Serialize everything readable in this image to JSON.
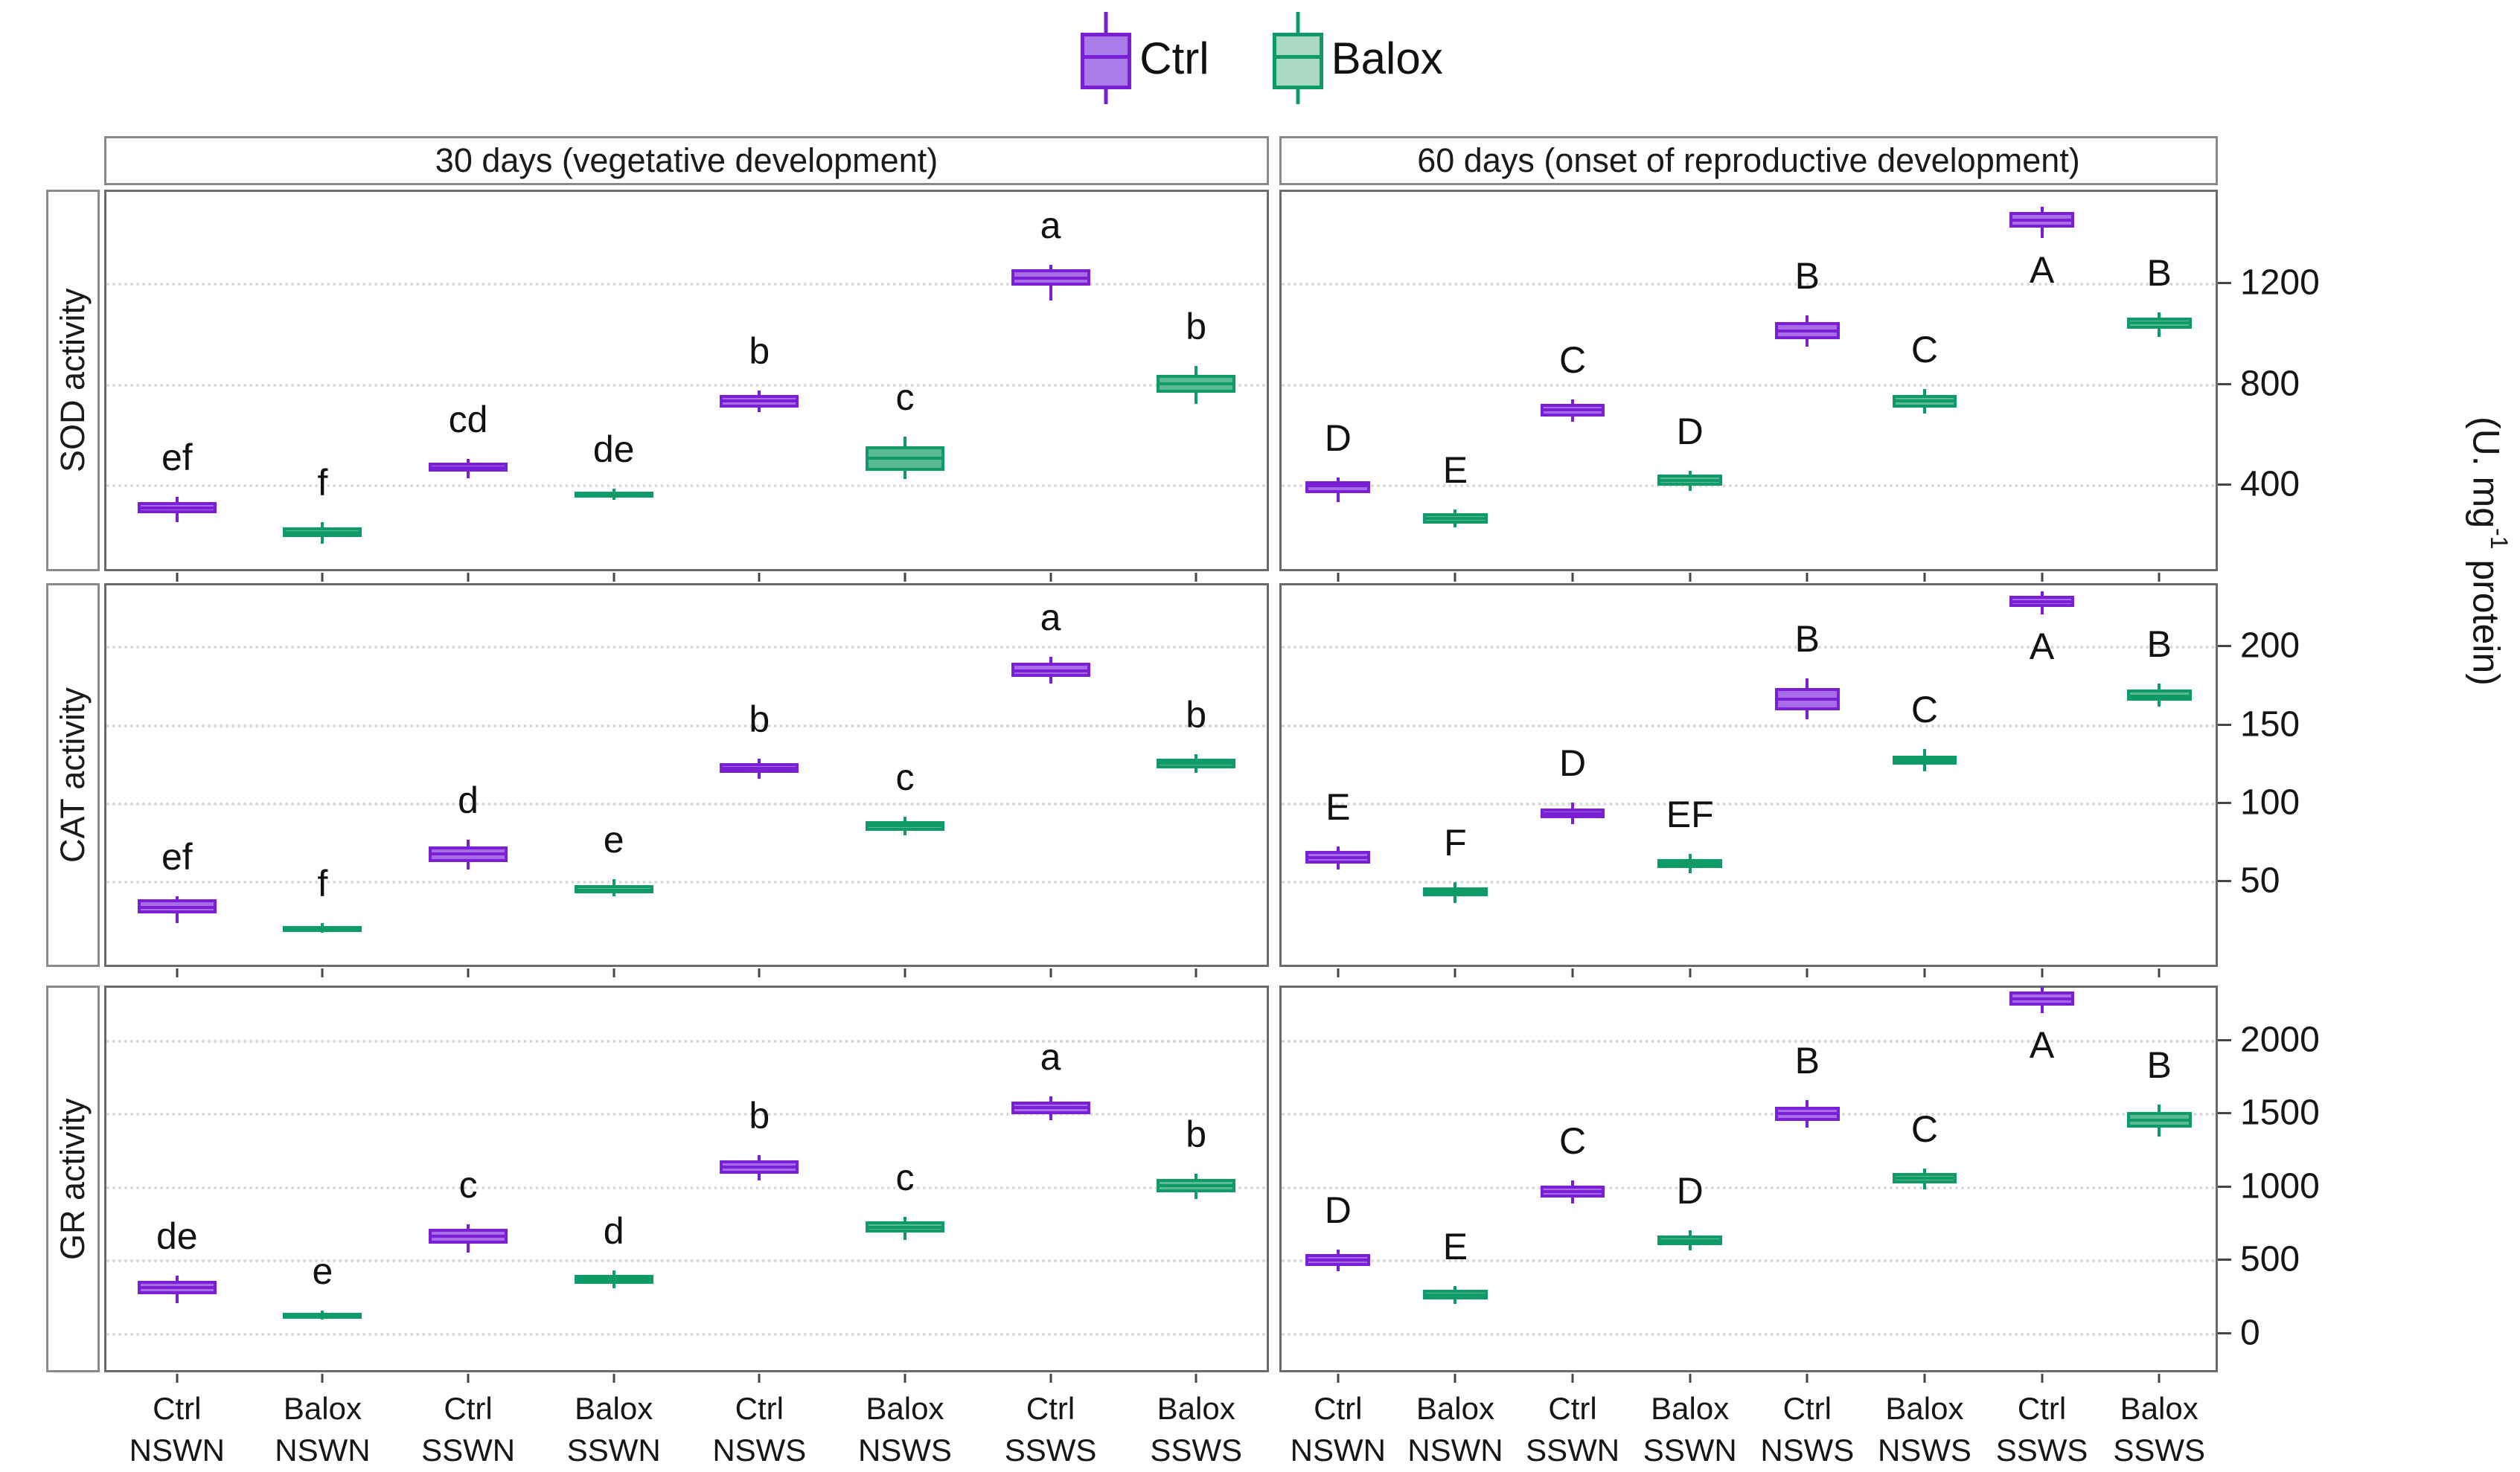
{
  "legend": {
    "items": [
      {
        "label": "Ctrl"
      },
      {
        "label": "Balox"
      }
    ]
  },
  "facets": {
    "columns": [
      {
        "title": "30 days (vegetative development)"
      },
      {
        "title": "60 days (onset of reproductive development)"
      }
    ],
    "rows": [
      {
        "title": "SOD activity"
      },
      {
        "title": "CAT activity"
      },
      {
        "title": "GR activity"
      }
    ]
  },
  "y_axis_label": {
    "pre": "(U. mg",
    "sup": "-1",
    "post": " protein)"
  },
  "chart_data": {
    "type": "boxplot",
    "legend_position": "top-center",
    "grid": "dotted-horizontal",
    "series": [
      {
        "name": "Ctrl",
        "fill": "#a76de8",
        "stroke": "#7b1fd6",
        "legend_fill": "#aa7ce9"
      },
      {
        "name": "Balox",
        "fill": "#5cb995",
        "stroke": "#0e9b67",
        "legend_fill": "#a9d8c4"
      }
    ],
    "categories": [
      {
        "l1": "Ctrl",
        "l2": "NSWN"
      },
      {
        "l1": "Balox",
        "l2": "NSWN"
      },
      {
        "l1": "Ctrl",
        "l2": "SSWN"
      },
      {
        "l1": "Balox",
        "l2": "SSWN"
      },
      {
        "l1": "Ctrl",
        "l2": "NSWS"
      },
      {
        "l1": "Balox",
        "l2": "NSWS"
      },
      {
        "l1": "Ctrl",
        "l2": "SSWS"
      },
      {
        "l1": "Balox",
        "l2": "SSWS"
      }
    ],
    "rows": [
      {
        "title": "SOD activity",
        "ylim": [
          55,
          1570
        ],
        "yticks": [
          400,
          800,
          1200
        ],
        "panels": [
          {
            "facet": "30 days (vegetative development)",
            "boxes": [
              {
                "t": "Ctrl",
                "s": "NSWN",
                "letter": "ef",
                "med": 305,
                "q1": 285,
                "q3": 330,
                "lo": 250,
                "hi": 350
              },
              {
                "t": "Balox",
                "s": "NSWN",
                "letter": "f",
                "med": 210,
                "q1": 190,
                "q3": 230,
                "lo": 165,
                "hi": 250
              },
              {
                "t": "Ctrl",
                "s": "SSWN",
                "letter": "cd",
                "med": 465,
                "q1": 450,
                "q3": 485,
                "lo": 425,
                "hi": 500
              },
              {
                "t": "Balox",
                "s": "SSWN",
                "letter": "de",
                "med": 360,
                "q1": 350,
                "q3": 372,
                "lo": 338,
                "hi": 382
              },
              {
                "t": "Ctrl",
                "s": "NSWS",
                "letter": "b",
                "med": 730,
                "q1": 705,
                "q3": 755,
                "lo": 688,
                "hi": 772
              },
              {
                "t": "Balox",
                "s": "NSWS",
                "letter": "c",
                "med": 505,
                "q1": 455,
                "q3": 550,
                "lo": 420,
                "hi": 590
              },
              {
                "t": "Ctrl",
                "s": "SSWS",
                "letter": "a",
                "med": 1220,
                "q1": 1190,
                "q3": 1255,
                "lo": 1130,
                "hi": 1272
              },
              {
                "t": "Balox",
                "s": "SSWS",
                "letter": "b",
                "med": 800,
                "q1": 765,
                "q3": 835,
                "lo": 720,
                "hi": 870
              }
            ]
          },
          {
            "facet": "60 days (onset of reproductive development)",
            "boxes": [
              {
                "t": "Ctrl",
                "s": "NSWN",
                "letter": "D",
                "med": 395,
                "q1": 365,
                "q3": 412,
                "lo": 330,
                "hi": 426
              },
              {
                "t": "Balox",
                "s": "NSWN",
                "letter": "E",
                "med": 265,
                "q1": 245,
                "q3": 285,
                "lo": 228,
                "hi": 300
              },
              {
                "t": "Ctrl",
                "s": "SSWN",
                "letter": "C",
                "med": 695,
                "q1": 670,
                "q3": 720,
                "lo": 648,
                "hi": 736
              },
              {
                "t": "Balox",
                "s": "SSWN",
                "letter": "D",
                "med": 415,
                "q1": 395,
                "q3": 440,
                "lo": 375,
                "hi": 455
              },
              {
                "t": "Ctrl",
                "s": "NSWS",
                "letter": "B",
                "med": 1010,
                "q1": 975,
                "q3": 1045,
                "lo": 948,
                "hi": 1072
              },
              {
                "t": "Balox",
                "s": "NSWS",
                "letter": "C",
                "med": 730,
                "q1": 705,
                "q3": 755,
                "lo": 680,
                "hi": 780
              },
              {
                "t": "Ctrl",
                "s": "SSWS",
                "letter": "A",
                "med": 1450,
                "q1": 1420,
                "q3": 1480,
                "lo": 1378,
                "hi": 1502,
                "letter_below": true
              },
              {
                "t": "Balox",
                "s": "SSWS",
                "letter": "B",
                "med": 1040,
                "q1": 1018,
                "q3": 1062,
                "lo": 985,
                "hi": 1082
              }
            ]
          }
        ]
      },
      {
        "title": "CAT activity",
        "ylim": [
          -5,
          240
        ],
        "yticks": [
          50,
          100,
          150,
          200
        ],
        "panels": [
          {
            "facet": "30 days (vegetative development)",
            "boxes": [
              {
                "t": "Ctrl",
                "s": "NSWN",
                "letter": "ef",
                "med": 33,
                "q1": 29,
                "q3": 38,
                "lo": 23,
                "hi": 40
              },
              {
                "t": "Balox",
                "s": "NSWN",
                "letter": "f",
                "med": 20,
                "q1": 19,
                "q3": 21,
                "lo": 17,
                "hi": 23
              },
              {
                "t": "Ctrl",
                "s": "SSWN",
                "letter": "d",
                "med": 67,
                "q1": 62,
                "q3": 72,
                "lo": 57,
                "hi": 76
              },
              {
                "t": "Balox",
                "s": "SSWN",
                "letter": "e",
                "med": 44,
                "q1": 42,
                "q3": 47,
                "lo": 40,
                "hi": 51
              },
              {
                "t": "Ctrl",
                "s": "NSWS",
                "letter": "b",
                "med": 122,
                "q1": 119,
                "q3": 125,
                "lo": 115,
                "hi": 128
              },
              {
                "t": "Balox",
                "s": "NSWS",
                "letter": "c",
                "med": 85,
                "q1": 82,
                "q3": 88,
                "lo": 79,
                "hi": 91
              },
              {
                "t": "Ctrl",
                "s": "SSWS",
                "letter": "a",
                "med": 184,
                "q1": 180,
                "q3": 189,
                "lo": 176,
                "hi": 193
              },
              {
                "t": "Balox",
                "s": "SSWS",
                "letter": "b",
                "med": 125,
                "q1": 122,
                "q3": 128,
                "lo": 119,
                "hi": 131
              }
            ]
          },
          {
            "facet": "60 days (onset of reproductive development)",
            "boxes": [
              {
                "t": "Ctrl",
                "s": "NSWN",
                "letter": "E",
                "med": 65,
                "q1": 61,
                "q3": 69,
                "lo": 57,
                "hi": 72
              },
              {
                "t": "Balox",
                "s": "NSWN",
                "letter": "F",
                "med": 43,
                "q1": 40,
                "q3": 46,
                "lo": 36,
                "hi": 49
              },
              {
                "t": "Ctrl",
                "s": "SSWN",
                "letter": "D",
                "med": 93,
                "q1": 90,
                "q3": 96,
                "lo": 86,
                "hi": 100
              },
              {
                "t": "Balox",
                "s": "SSWN",
                "letter": "EF",
                "med": 61,
                "q1": 58,
                "q3": 64,
                "lo": 55,
                "hi": 67
              },
              {
                "t": "Ctrl",
                "s": "NSWS",
                "letter": "B",
                "med": 166,
                "q1": 159,
                "q3": 173,
                "lo": 153,
                "hi": 179
              },
              {
                "t": "Balox",
                "s": "NSWS",
                "letter": "C",
                "med": 127,
                "q1": 124,
                "q3": 130,
                "lo": 120,
                "hi": 134
              },
              {
                "t": "Ctrl",
                "s": "SSWS",
                "letter": "A",
                "med": 228,
                "q1": 225,
                "q3": 232,
                "lo": 220,
                "hi": 235,
                "letter_below": true
              },
              {
                "t": "Balox",
                "s": "SSWS",
                "letter": "B",
                "med": 168,
                "q1": 165,
                "q3": 172,
                "lo": 161,
                "hi": 176
              }
            ]
          }
        ]
      },
      {
        "title": "GR activity",
        "ylim": [
          -270,
          2370
        ],
        "yticks": [
          0,
          500,
          1000,
          1500,
          2000
        ],
        "panels": [
          {
            "facet": "30 days (vegetative development)",
            "boxes": [
              {
                "t": "Ctrl",
                "s": "NSWN",
                "letter": "de",
                "med": 310,
                "q1": 265,
                "q3": 355,
                "lo": 200,
                "hi": 390
              },
              {
                "t": "Balox",
                "s": "NSWN",
                "letter": "e",
                "med": 120,
                "q1": 105,
                "q3": 135,
                "lo": 90,
                "hi": 150
              },
              {
                "t": "Ctrl",
                "s": "SSWN",
                "letter": "c",
                "med": 660,
                "q1": 610,
                "q3": 710,
                "lo": 545,
                "hi": 740
              },
              {
                "t": "Balox",
                "s": "SSWN",
                "letter": "d",
                "med": 365,
                "q1": 335,
                "q3": 395,
                "lo": 305,
                "hi": 425
              },
              {
                "t": "Ctrl",
                "s": "NSWS",
                "letter": "b",
                "med": 1130,
                "q1": 1085,
                "q3": 1175,
                "lo": 1040,
                "hi": 1215
              },
              {
                "t": "Balox",
                "s": "NSWS",
                "letter": "c",
                "med": 720,
                "q1": 685,
                "q3": 760,
                "lo": 635,
                "hi": 790
              },
              {
                "t": "Ctrl",
                "s": "SSWS",
                "letter": "a",
                "med": 1535,
                "q1": 1490,
                "q3": 1580,
                "lo": 1450,
                "hi": 1615
              },
              {
                "t": "Balox",
                "s": "SSWS",
                "letter": "b",
                "med": 1005,
                "q1": 960,
                "q3": 1050,
                "lo": 915,
                "hi": 1085
              }
            ]
          },
          {
            "facet": "60 days (onset of reproductive development)",
            "boxes": [
              {
                "t": "Ctrl",
                "s": "NSWN",
                "letter": "D",
                "med": 495,
                "q1": 455,
                "q3": 535,
                "lo": 420,
                "hi": 570
              },
              {
                "t": "Balox",
                "s": "NSWN",
                "letter": "E",
                "med": 260,
                "q1": 225,
                "q3": 295,
                "lo": 195,
                "hi": 320
              },
              {
                "t": "Ctrl",
                "s": "SSWN",
                "letter": "C",
                "med": 965,
                "q1": 925,
                "q3": 1005,
                "lo": 880,
                "hi": 1040
              },
              {
                "t": "Balox",
                "s": "SSWN",
                "letter": "D",
                "med": 630,
                "q1": 600,
                "q3": 665,
                "lo": 565,
                "hi": 700
              },
              {
                "t": "Ctrl",
                "s": "NSWS",
                "letter": "B",
                "med": 1495,
                "q1": 1445,
                "q3": 1545,
                "lo": 1400,
                "hi": 1590
              },
              {
                "t": "Balox",
                "s": "NSWS",
                "letter": "C",
                "med": 1055,
                "q1": 1020,
                "q3": 1090,
                "lo": 980,
                "hi": 1120
              },
              {
                "t": "Ctrl",
                "s": "SSWS",
                "letter": "A",
                "med": 2280,
                "q1": 2235,
                "q3": 2330,
                "lo": 2180,
                "hi": 2360,
                "letter_below": true
              },
              {
                "t": "Balox",
                "s": "SSWS",
                "letter": "B",
                "med": 1450,
                "q1": 1400,
                "q3": 1505,
                "lo": 1340,
                "hi": 1560
              }
            ]
          }
        ]
      }
    ]
  }
}
